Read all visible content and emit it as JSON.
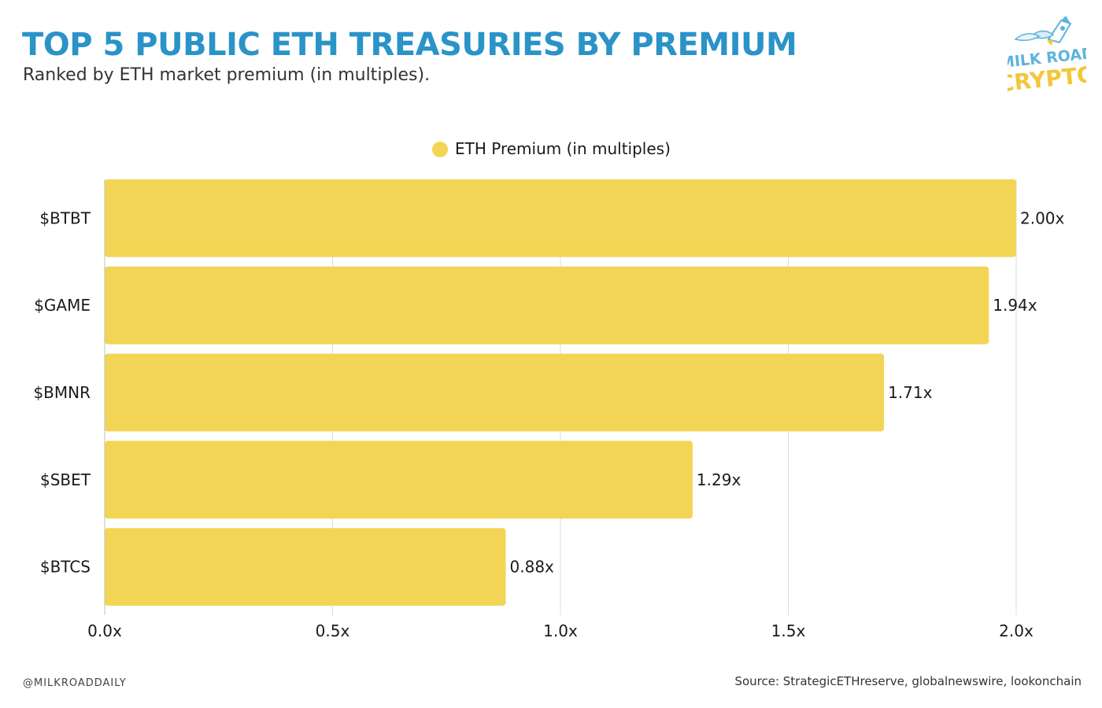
{
  "header": {
    "title": "TOP 5 PUBLIC ETH TREASURIES BY PREMIUM",
    "subtitle": "Ranked by ETH market premium (in multiples)."
  },
  "logo": {
    "line1": "MILK ROAD",
    "line2": "CRYPTO",
    "icon": "milk-carton-rocket-icon"
  },
  "footer": {
    "handle": "@MILKROADDAILY",
    "source": "Source: StrategicETHreserve, globalnewswire, lookonchain"
  },
  "colors": {
    "title": "#2a93c8",
    "bar": "#f2d554",
    "grid": "#dcdcdc",
    "logo_blue": "#5fb3dc",
    "logo_yellow": "#f2c73a"
  },
  "chart_data": {
    "type": "bar",
    "orientation": "horizontal",
    "categories": [
      "$BTBT",
      "$GAME",
      "$BMNR",
      "$SBET",
      "$BTCS"
    ],
    "series": [
      {
        "name": "ETH Premium (in multiples)",
        "values": [
          2.0,
          1.94,
          1.71,
          1.29,
          0.88
        ],
        "labels": [
          "2.00x",
          "1.94x",
          "1.71x",
          "1.29x",
          "0.88x"
        ]
      }
    ],
    "xlim": [
      0,
      2.0
    ],
    "xticks": [
      0,
      0.5,
      1.0,
      1.5,
      2.0
    ],
    "xtick_labels": [
      "0.0x",
      "0.5x",
      "1.0x",
      "1.5x",
      "2.0x"
    ],
    "grid": true,
    "legend": "top-center"
  }
}
